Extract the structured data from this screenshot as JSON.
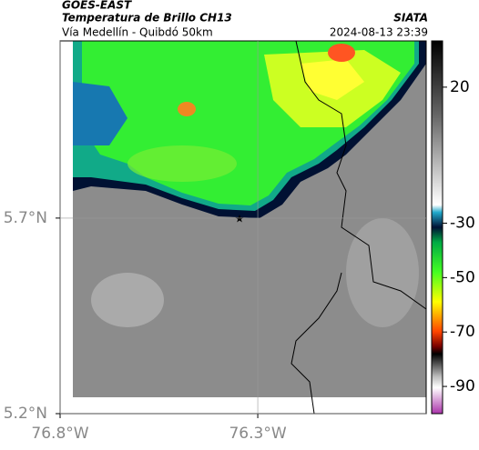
{
  "chart_data": {
    "type": "map",
    "title": "GOES-EAST",
    "subtitle": "Temperatura de Brillo CH13",
    "source": "SIATA",
    "region": "Vía Medellín - Quibdó 50km",
    "timestamp": "2024-08-13 23:39",
    "xlim": [
      -76.8,
      -75.874
    ],
    "ylim": [
      5.2,
      6.153
    ],
    "xticks": [
      {
        "value": -76.8,
        "label": "76.8°W"
      },
      {
        "value": -76.3,
        "label": "76.3°W"
      }
    ],
    "yticks": [
      {
        "value": 5.2,
        "label": "5.2°N"
      },
      {
        "value": 5.7,
        "label": "5.7°N"
      }
    ],
    "grid": true,
    "colorbar": {
      "clim": [
        -100,
        37
      ],
      "ticks": [
        20,
        -30,
        -50,
        -70,
        -90
      ]
    }
  }
}
